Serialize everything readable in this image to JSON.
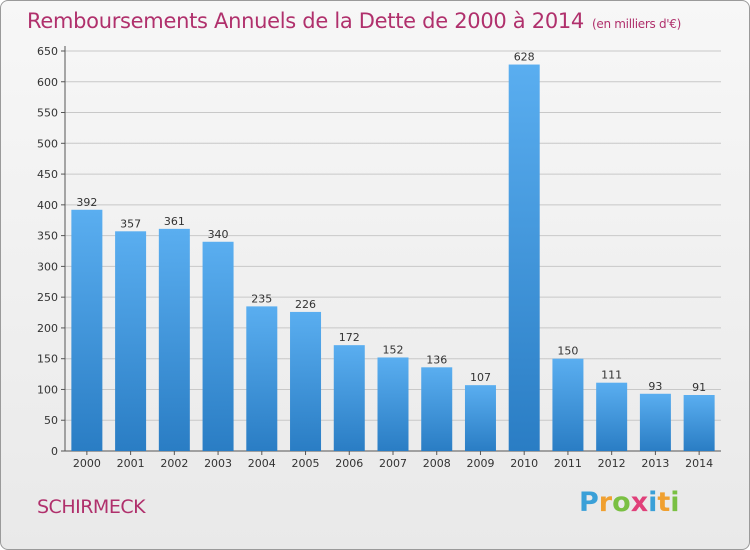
{
  "chart_data": {
    "type": "bar",
    "title": "Remboursements Annuels de la Dette de 2000 à 2014",
    "unit_label": "(en milliers d'€)",
    "categories": [
      "2000",
      "2001",
      "2002",
      "2003",
      "2004",
      "2005",
      "2006",
      "2007",
      "2008",
      "2009",
      "2010",
      "2011",
      "2012",
      "2013",
      "2014"
    ],
    "values": [
      392,
      357,
      361,
      340,
      235,
      226,
      172,
      152,
      136,
      107,
      628,
      150,
      111,
      93,
      91
    ],
    "ylim": [
      0,
      650
    ],
    "yticks": [
      0,
      50,
      100,
      150,
      200,
      250,
      300,
      350,
      400,
      450,
      500,
      550,
      600,
      650
    ],
    "grid": true,
    "colors": {
      "bar_top": "#5aaef0",
      "bar_bottom": "#2a7dc4",
      "grid": "#c8c8c8",
      "title": "#b0306c"
    }
  },
  "footer": {
    "city": "SCHIRMECK",
    "logo": [
      "P",
      "r",
      "o",
      "x",
      "i",
      "t",
      "i"
    ],
    "logo_colors": [
      "#3aa0d8",
      "#f0a030",
      "#7ac043",
      "#e0407a",
      "#3aa0d8",
      "#f0a030",
      "#7ac043"
    ]
  }
}
